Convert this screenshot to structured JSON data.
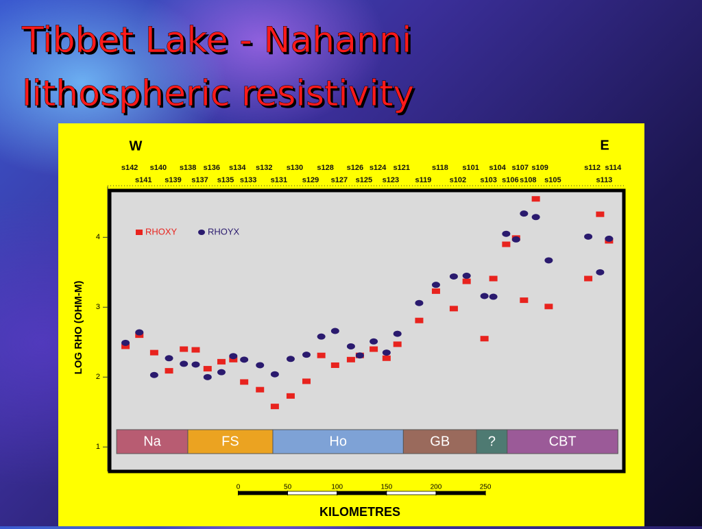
{
  "chart_data": {
    "type": "scatter",
    "title_lines": [
      "Tibbet Lake - Nahanni",
      "lithospheric resistivity"
    ],
    "west_label": "W",
    "east_label": "E",
    "y_label": "LOG RHO (OHM-M)",
    "stations": [
      "s142",
      "s141",
      "s140",
      "s139",
      "s138",
      "s137",
      "s136",
      "s135",
      "s134",
      "s133",
      "s132",
      "s131",
      "s130",
      "s129",
      "s128",
      "s127",
      "s126",
      "s125",
      "s124",
      "s123",
      "s121",
      "s119",
      "s118",
      "s102",
      "s101",
      "s103",
      "s104",
      "s106",
      "s107",
      "s108",
      "s109",
      "s105",
      "s112",
      "s113",
      "s114"
    ],
    "x": [
      -114,
      -100,
      -85,
      -70,
      -55,
      -43,
      -31,
      -17,
      -5,
      6,
      22,
      37,
      53,
      69,
      84,
      98,
      114,
      123,
      137,
      150,
      161,
      183,
      200,
      218,
      231,
      249,
      258,
      271,
      281,
      289,
      301,
      314,
      354,
      366,
      375
    ],
    "series": [
      {
        "name": "RHOXY",
        "color": "#e8231e",
        "marker": "square",
        "values": [
          2.44,
          2.6,
          2.35,
          2.09,
          2.4,
          2.39,
          2.12,
          2.22,
          2.25,
          1.93,
          1.82,
          1.58,
          1.73,
          1.94,
          2.31,
          2.17,
          2.25,
          2.31,
          2.4,
          2.27,
          2.47,
          2.81,
          3.23,
          2.98,
          3.37,
          2.55,
          3.41,
          3.9,
          3.99,
          3.1,
          4.55,
          3.01,
          3.41,
          4.33,
          3.95
        ]
      },
      {
        "name": "RHOYX",
        "color": "#2a1a6e",
        "marker": "ellipse",
        "values": [
          2.49,
          2.64,
          2.03,
          2.27,
          2.19,
          2.18,
          2.0,
          2.07,
          2.3,
          2.25,
          2.17,
          2.04,
          2.26,
          2.32,
          2.58,
          2.66,
          2.44,
          2.31,
          2.51,
          2.35,
          2.62,
          3.06,
          3.32,
          3.44,
          3.45,
          3.16,
          3.15,
          4.05,
          3.97,
          4.34,
          4.29,
          3.67,
          4.01,
          3.5,
          3.98
        ]
      }
    ],
    "xlim": [
      -130,
      390
    ],
    "ylim": [
      0.65,
      4.67
    ],
    "yticks": [
      1,
      2,
      3,
      4
    ],
    "terranes": [
      {
        "label": "Na",
        "color": "#b85c72"
      },
      {
        "label": "FS",
        "color": "#eba321"
      },
      {
        "label": "Ho",
        "color": "#7ea2d6"
      },
      {
        "label": "GB",
        "color": "#9a6a5c"
      },
      {
        "label": "?",
        "color": "#4e7a72"
      },
      {
        "label": "CBT",
        "color": "#9b5a98"
      }
    ],
    "terrane_bounds": [
      -123,
      -51,
      35,
      167,
      241,
      272,
      384
    ],
    "scale_bar": {
      "label": "KILOMETRES",
      "ticks": [
        0,
        50,
        100,
        150,
        200,
        250
      ]
    }
  }
}
